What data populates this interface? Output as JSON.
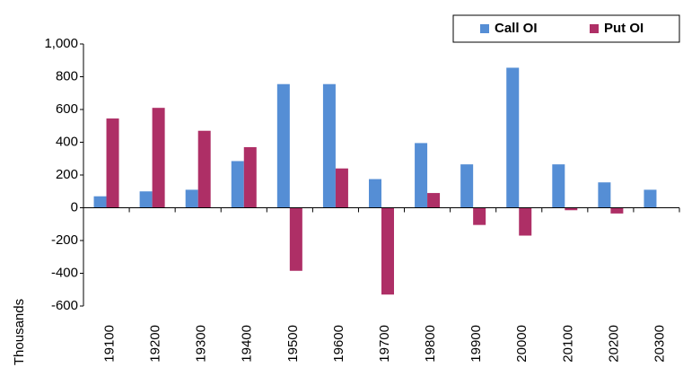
{
  "chart_data": {
    "type": "bar",
    "y_axis_label": "Thousands",
    "categories": [
      "19100",
      "19200",
      "19300",
      "19400",
      "19500",
      "19600",
      "19700",
      "19800",
      "19900",
      "20000",
      "20100",
      "20200",
      "20300"
    ],
    "series": [
      {
        "name": "Call OI",
        "color": "#558ed5",
        "values": [
          70,
          100,
          110,
          285,
          755,
          755,
          175,
          395,
          265,
          855,
          265,
          155,
          110
        ]
      },
      {
        "name": "Put OI",
        "color": "#ae2f66",
        "values": [
          545,
          610,
          470,
          370,
          -385,
          240,
          -530,
          90,
          -105,
          -170,
          -15,
          -35,
          null
        ]
      }
    ],
    "ylim": [
      -600,
      1000
    ],
    "yticks": [
      -600,
      -400,
      -200,
      0,
      200,
      400,
      600,
      800,
      {
        "value": 1000,
        "label": "1,000"
      }
    ],
    "grid": false,
    "legend": "upper right"
  }
}
